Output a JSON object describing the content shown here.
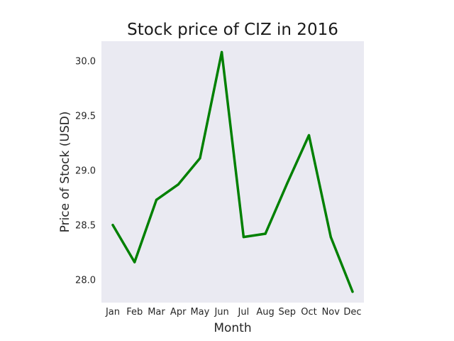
{
  "chart_data": {
    "type": "line",
    "title": "Stock price of CIZ in 2016",
    "xlabel": "Month",
    "ylabel": "Price of Stock (USD)",
    "categories": [
      "Jan",
      "Feb",
      "Mar",
      "Apr",
      "May",
      "Jun",
      "Jul",
      "Aug",
      "Sep",
      "Oct",
      "Nov",
      "Dec"
    ],
    "series": [
      {
        "values": [
          28.5,
          28.16,
          28.73,
          28.87,
          29.11,
          30.08,
          28.39,
          28.42,
          28.88,
          29.32,
          28.39,
          27.89
        ],
        "color": "#008000"
      }
    ],
    "ylim": [
      27.79,
      30.18
    ],
    "yticks": [
      28.0,
      28.5,
      29.0,
      29.5,
      30.0
    ],
    "ytick_labels": [
      "28.0",
      "28.5",
      "29.0",
      "29.5",
      "30.0"
    ],
    "grid": false,
    "background_color": "#eaeaf2"
  }
}
